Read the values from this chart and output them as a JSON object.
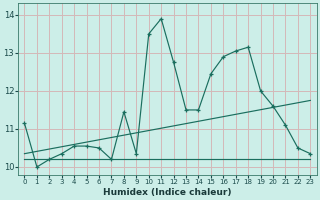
{
  "xlabel": "Humidex (Indice chaleur)",
  "bg_color": "#cceee8",
  "grid_color": "#d4b8b8",
  "line_color": "#1a6e5e",
  "xlim": [
    -0.5,
    23.5
  ],
  "ylim": [
    9.8,
    14.3
  ],
  "yticks": [
    10,
    11,
    12,
    13,
    14
  ],
  "xticks": [
    0,
    1,
    2,
    3,
    4,
    5,
    6,
    7,
    8,
    9,
    10,
    11,
    12,
    13,
    14,
    15,
    16,
    17,
    18,
    19,
    20,
    21,
    22,
    23
  ],
  "series": [
    [
      0,
      11.15
    ],
    [
      1,
      10.0
    ],
    [
      2,
      10.2
    ],
    [
      3,
      10.35
    ],
    [
      4,
      10.55
    ],
    [
      5,
      10.55
    ],
    [
      6,
      10.5
    ],
    [
      7,
      10.2
    ],
    [
      8,
      11.45
    ],
    [
      9,
      10.35
    ],
    [
      10,
      13.5
    ],
    [
      11,
      13.9
    ],
    [
      12,
      12.75
    ],
    [
      13,
      11.5
    ],
    [
      14,
      11.5
    ],
    [
      15,
      12.45
    ],
    [
      16,
      12.9
    ],
    [
      17,
      13.05
    ],
    [
      18,
      13.15
    ],
    [
      19,
      12.0
    ],
    [
      20,
      11.6
    ],
    [
      21,
      11.1
    ],
    [
      22,
      10.5
    ],
    [
      23,
      10.35
    ]
  ],
  "trend_line": [
    [
      0,
      10.35
    ],
    [
      23,
      11.75
    ]
  ],
  "flat_line": [
    [
      0,
      10.2
    ],
    [
      23,
      10.2
    ]
  ]
}
